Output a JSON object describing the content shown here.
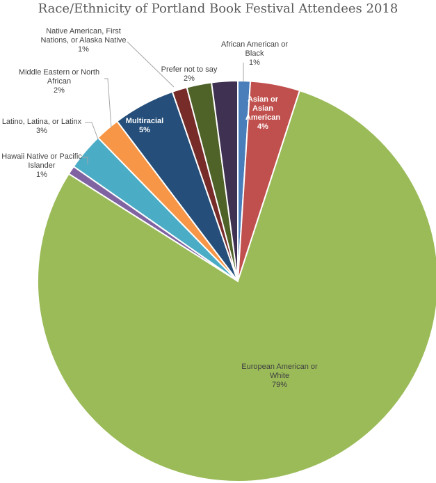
{
  "chart_data": {
    "type": "pie",
    "title": "Race/Ethnicity of Portland Book Festival Attendees 2018",
    "slices": [
      {
        "label": [
          "African American or",
          "Black"
        ],
        "pct_label": "1%",
        "value": 1,
        "color": "#4a7ebb"
      },
      {
        "label": [
          "Asian or",
          "Asian",
          "American"
        ],
        "pct_label": "4%",
        "value": 4,
        "color": "#c0504d"
      },
      {
        "label": [
          "European American or",
          "White"
        ],
        "pct_label": "79%",
        "value": 79,
        "color": "#9bbb59"
      },
      {
        "label": [
          "Hawaii Native or Pacific",
          "Islander"
        ],
        "pct_label": "1%",
        "value": 0.7,
        "color": "#8064a2"
      },
      {
        "label": [
          "Latino, Latina, or Latinx"
        ],
        "pct_label": "3%",
        "value": 3,
        "color": "#4bacc6"
      },
      {
        "label": [
          "Middle Eastern or North",
          "African"
        ],
        "pct_label": "2%",
        "value": 2,
        "color": "#f79646"
      },
      {
        "label": [
          "Multiracial"
        ],
        "pct_label": "5%",
        "value": 5,
        "color": "#254f7a"
      },
      {
        "label": [
          "Native American, First",
          "Nations, or Alaska Native"
        ],
        "pct_label": "1%",
        "value": 1.2,
        "color": "#772c2a"
      },
      {
        "label": [
          "Prefer not to say"
        ],
        "pct_label": "2%",
        "value": 2,
        "color": "#4f6228"
      },
      {
        "label": [],
        "pct_label": "",
        "value": 2.1,
        "color": "#3f3151"
      }
    ]
  }
}
